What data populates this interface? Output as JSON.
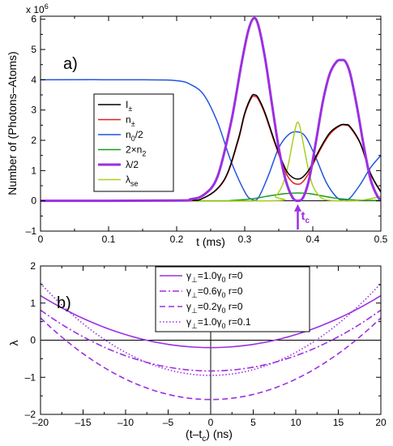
{
  "chart_data": [
    {
      "type": "line",
      "panel_label": "a)",
      "xlabel": "t (ms)",
      "ylabel": "Number of (Photons–Atoms)",
      "y_multiplier": "x 10",
      "y_multiplier_exp": "6",
      "xlim": [
        0,
        0.5
      ],
      "ylim": [
        -1,
        6.1
      ],
      "x_ticks": [
        0,
        0.1,
        0.2,
        0.3,
        0.4,
        0.5
      ],
      "x_tick_labels": [
        "0",
        "0.1",
        "0.2",
        "0.3",
        "0.4",
        "0.5"
      ],
      "y_ticks": [
        -1,
        0,
        1,
        2,
        3,
        4,
        5,
        6
      ],
      "y_tick_labels": [
        "–1",
        "0",
        "1",
        "2",
        "3",
        "4",
        "5",
        "6"
      ],
      "legend_position": "center-left",
      "annotation": {
        "text": "t",
        "sub": "c",
        "x": 0.378,
        "color": "#9b30e0"
      },
      "series": [
        {
          "name": "I±",
          "label": "I",
          "sub": "±",
          "color": "#000000",
          "width": 1.5,
          "x": [
            0,
            0.2,
            0.24,
            0.27,
            0.29,
            0.3,
            0.31,
            0.315,
            0.32,
            0.33,
            0.345,
            0.36,
            0.37,
            0.378,
            0.385,
            0.395,
            0.41,
            0.425,
            0.44,
            0.448,
            0.455,
            0.47,
            0.485,
            0.5
          ],
          "y": [
            0,
            0.01,
            0.1,
            0.7,
            2.0,
            2.9,
            3.45,
            3.5,
            3.4,
            2.9,
            1.9,
            1.05,
            0.78,
            0.72,
            0.78,
            1.05,
            1.7,
            2.25,
            2.5,
            2.52,
            2.45,
            1.9,
            0.9,
            0.3
          ]
        },
        {
          "name": "n±",
          "label": "n",
          "sub": "±",
          "color": "#e0201e",
          "width": 1.5,
          "x": [
            0,
            0.2,
            0.24,
            0.27,
            0.29,
            0.3,
            0.31,
            0.315,
            0.32,
            0.33,
            0.345,
            0.36,
            0.37,
            0.378,
            0.385,
            0.395,
            0.41,
            0.425,
            0.44,
            0.448,
            0.455,
            0.47,
            0.485,
            0.5
          ],
          "y": [
            0,
            0.01,
            0.1,
            0.68,
            1.95,
            2.85,
            3.4,
            3.45,
            3.35,
            2.85,
            1.85,
            0.95,
            0.62,
            0.55,
            0.62,
            0.95,
            1.65,
            2.2,
            2.48,
            2.5,
            2.42,
            1.88,
            0.88,
            0.28
          ]
        },
        {
          "name": "n0/2",
          "label": "n",
          "sub": "0",
          "suffix": "/2",
          "color": "#2255e0",
          "width": 1.5,
          "x": [
            0,
            0.15,
            0.2,
            0.22,
            0.24,
            0.26,
            0.28,
            0.3,
            0.31,
            0.32,
            0.335,
            0.35,
            0.365,
            0.378,
            0.39,
            0.405,
            0.42,
            0.435,
            0.445,
            0.455,
            0.47,
            0.485,
            0.5
          ],
          "y": [
            4.0,
            4.0,
            3.97,
            3.85,
            3.5,
            2.6,
            1.3,
            0.3,
            0.05,
            0.1,
            0.85,
            1.75,
            2.2,
            2.28,
            2.1,
            1.4,
            0.6,
            0.12,
            0.02,
            0.1,
            0.55,
            1.1,
            1.5
          ]
        },
        {
          "name": "2×n2",
          "label": "2×n",
          "sub": "2",
          "color": "#1a9a1a",
          "width": 1.5,
          "x": [
            0,
            0.25,
            0.28,
            0.3,
            0.32,
            0.34,
            0.36,
            0.378,
            0.395,
            0.41,
            0.43,
            0.45,
            0.47,
            0.5
          ],
          "y": [
            0,
            0.0,
            0.01,
            0.04,
            0.1,
            0.18,
            0.24,
            0.26,
            0.24,
            0.18,
            0.1,
            0.05,
            0.02,
            0.01
          ]
        },
        {
          "name": "λ/2",
          "label": "λ/2",
          "sub": "",
          "color": "#9b30e0",
          "width": 3,
          "x": [
            0,
            0.2,
            0.22,
            0.24,
            0.26,
            0.28,
            0.295,
            0.305,
            0.313,
            0.32,
            0.33,
            0.34,
            0.35,
            0.36,
            0.37,
            0.378,
            0.386,
            0.395,
            0.405,
            0.415,
            0.425,
            0.435,
            0.442,
            0.448,
            0.455,
            0.465,
            0.475,
            0.485,
            0.495,
            0.5
          ],
          "y": [
            0,
            0.01,
            0.05,
            0.2,
            0.8,
            2.6,
            4.5,
            5.6,
            6.03,
            5.8,
            4.7,
            3.2,
            1.75,
            0.7,
            0.12,
            0.0,
            0.12,
            0.75,
            2.0,
            3.3,
            4.2,
            4.6,
            4.65,
            4.6,
            4.2,
            3.1,
            1.8,
            0.7,
            0.15,
            0.05
          ]
        },
        {
          "name": "λse",
          "label": "λ",
          "sub": "se",
          "color": "#a8d020",
          "width": 1.5,
          "x": [
            0,
            0.33,
            0.345,
            0.355,
            0.363,
            0.37,
            0.375,
            0.378,
            0.381,
            0.386,
            0.393,
            0.4,
            0.41,
            0.42,
            0.44,
            0.46,
            0.48,
            0.5
          ],
          "y": [
            0,
            0.0,
            0.15,
            0.5,
            1.1,
            1.9,
            2.45,
            2.6,
            2.45,
            1.9,
            1.1,
            0.5,
            0.15,
            0.03,
            0.0,
            0.0,
            0.05,
            0.15
          ]
        }
      ]
    },
    {
      "type": "line",
      "panel_label": "b)",
      "xlabel": "(t–t",
      "xlabel_sub": "c",
      "xlabel_suffix": ")  (ns)",
      "ylabel": "λ",
      "xlim": [
        -20,
        20
      ],
      "ylim": [
        -2,
        2
      ],
      "x_ticks": [
        -20,
        -15,
        -10,
        -5,
        0,
        5,
        10,
        15,
        20
      ],
      "x_tick_labels": [
        "–20",
        "–15",
        "–10",
        "–5",
        "0",
        "5",
        "10",
        "15",
        "20"
      ],
      "y_ticks": [
        -2,
        -1,
        0,
        1,
        2
      ],
      "y_tick_labels": [
        "–2",
        "–1",
        "0",
        "1",
        "2"
      ],
      "legend_position": "top-center",
      "series": [
        {
          "name": "γ⊥=1.0γ0  r=0",
          "gamma": "γ",
          "perp": "⊥",
          "eq": "=1.0γ",
          "sub": "0",
          "r": "r=0",
          "dash": "",
          "color": "#9b30e0",
          "a": 0.0035,
          "c": -0.2
        },
        {
          "name": "γ⊥=0.6γ0  r=0",
          "gamma": "γ",
          "perp": "⊥",
          "eq": "=0.6γ",
          "sub": "0",
          "r": "r=0",
          "dash": "8,3,2,3",
          "color": "#9b30e0",
          "a": 0.0041,
          "c": -0.83
        },
        {
          "name": "γ⊥=0.2γ0  r=0",
          "gamma": "γ",
          "perp": "⊥",
          "eq": "=0.2γ",
          "sub": "0",
          "r": "r=0",
          "dash": "7,4",
          "color": "#9b30e0",
          "a": 0.0055,
          "c": -1.6
        },
        {
          "name": "γ⊥=1.0γ0  r=0.1",
          "gamma": "γ",
          "perp": "⊥",
          "eq": "=1.0γ",
          "sub": "0",
          "r": "r=0.1",
          "dash": "1.5,2.5",
          "color": "#9b30e0",
          "a": 0.0062,
          "c": -0.95
        }
      ]
    }
  ]
}
